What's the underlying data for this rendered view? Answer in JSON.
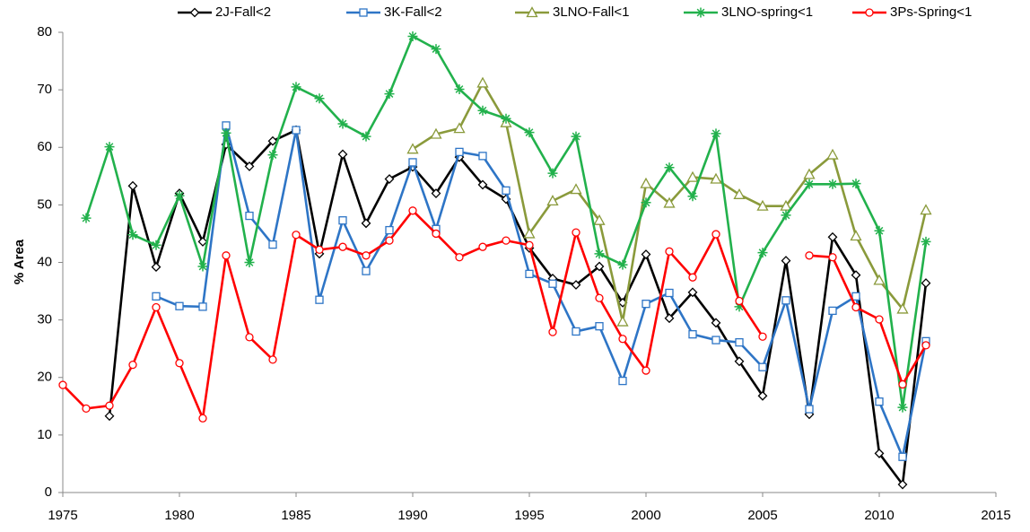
{
  "chart_data": {
    "type": "line",
    "y_label": "% Area",
    "x": [
      1975,
      1976,
      1977,
      1978,
      1979,
      1980,
      1981,
      1982,
      1983,
      1984,
      1985,
      1986,
      1987,
      1988,
      1989,
      1990,
      1991,
      1992,
      1993,
      1994,
      1995,
      1996,
      1997,
      1998,
      1999,
      2000,
      2001,
      2002,
      2003,
      2004,
      2005,
      2006,
      2007,
      2008,
      2009,
      2010,
      2011,
      2012
    ],
    "xlim": [
      1975,
      2015
    ],
    "xticks": [
      1975,
      1980,
      1985,
      1990,
      1995,
      2000,
      2005,
      2010,
      2015
    ],
    "ylim": [
      0,
      80
    ],
    "yticks": [
      0,
      10,
      20,
      30,
      40,
      50,
      60,
      70,
      80
    ],
    "grid": false,
    "legend": "top",
    "series": [
      {
        "name": "2J-Fall<2",
        "color": "#000000",
        "marker": "diamond",
        "values": [
          null,
          null,
          13.3,
          53.3,
          39.2,
          52,
          43.6,
          60.5,
          56.7,
          61.1,
          63,
          41.5,
          58.8,
          46.8,
          54.5,
          56.6,
          52,
          58.3,
          53.5,
          51,
          42.5,
          37.2,
          36.1,
          39.3,
          33,
          41.4,
          30.3,
          34.8,
          29.5,
          22.8,
          16.8,
          40.3,
          13.6,
          44.4,
          37.8,
          6.8,
          1.4,
          36.4
        ]
      },
      {
        "name": "3K-Fall<2",
        "color": "#2e75c6",
        "marker": "square",
        "values": [
          null,
          null,
          null,
          null,
          34.1,
          32.4,
          32.3,
          63.8,
          48.1,
          43.1,
          63,
          33.5,
          47.3,
          38.5,
          45.6,
          57.4,
          45.8,
          59.2,
          58.5,
          52.5,
          38,
          36.3,
          28,
          28.9,
          19.4,
          32.8,
          34.7,
          27.5,
          26.5,
          26.1,
          21.8,
          33.4,
          14.5,
          31.6,
          34.1,
          15.8,
          6.2,
          26.3
        ]
      },
      {
        "name": "3LNO-Fall<1",
        "color": "#8a9a3b",
        "marker": "triangle",
        "values": [
          null,
          null,
          null,
          null,
          null,
          null,
          null,
          null,
          null,
          null,
          null,
          null,
          null,
          null,
          null,
          59.7,
          62.3,
          63.3,
          71.2,
          64.3,
          45,
          50.7,
          52.7,
          47.3,
          29.7,
          53.7,
          50.3,
          54.8,
          54.5,
          51.8,
          49.8,
          49.8,
          55.3,
          58.7,
          44.6,
          36.9,
          31.9,
          49.1
        ]
      },
      {
        "name": "3LNO-spring<1",
        "color": "#22b14c",
        "marker": "star",
        "values": [
          null,
          47.7,
          60.1,
          44.8,
          43,
          51.6,
          39.3,
          62.5,
          40,
          58.7,
          70.5,
          68.5,
          64.1,
          61.9,
          69.3,
          79.3,
          77.1,
          70.1,
          66.4,
          65,
          62.6,
          55.5,
          61.9,
          41.5,
          39.6,
          50.4,
          56.5,
          51.5,
          62.4,
          32.3,
          41.7,
          48.2,
          53.6,
          53.6,
          53.7,
          45.5,
          14.8,
          43.6
        ]
      },
      {
        "name": "3Ps-Spring<1",
        "color": "#ff0000",
        "marker": "circle",
        "values": [
          18.7,
          14.6,
          15.1,
          22.2,
          32.2,
          22.5,
          12.9,
          41.2,
          27,
          23.1,
          44.8,
          42.2,
          42.7,
          41.2,
          43.8,
          49,
          45,
          40.9,
          42.7,
          43.8,
          43,
          27.9,
          45.2,
          33.8,
          26.7,
          21.2,
          41.9,
          37.4,
          44.9,
          33.3,
          27.1,
          null,
          41.2,
          40.9,
          32.2,
          30.1,
          18.8,
          25.6
        ]
      }
    ]
  }
}
